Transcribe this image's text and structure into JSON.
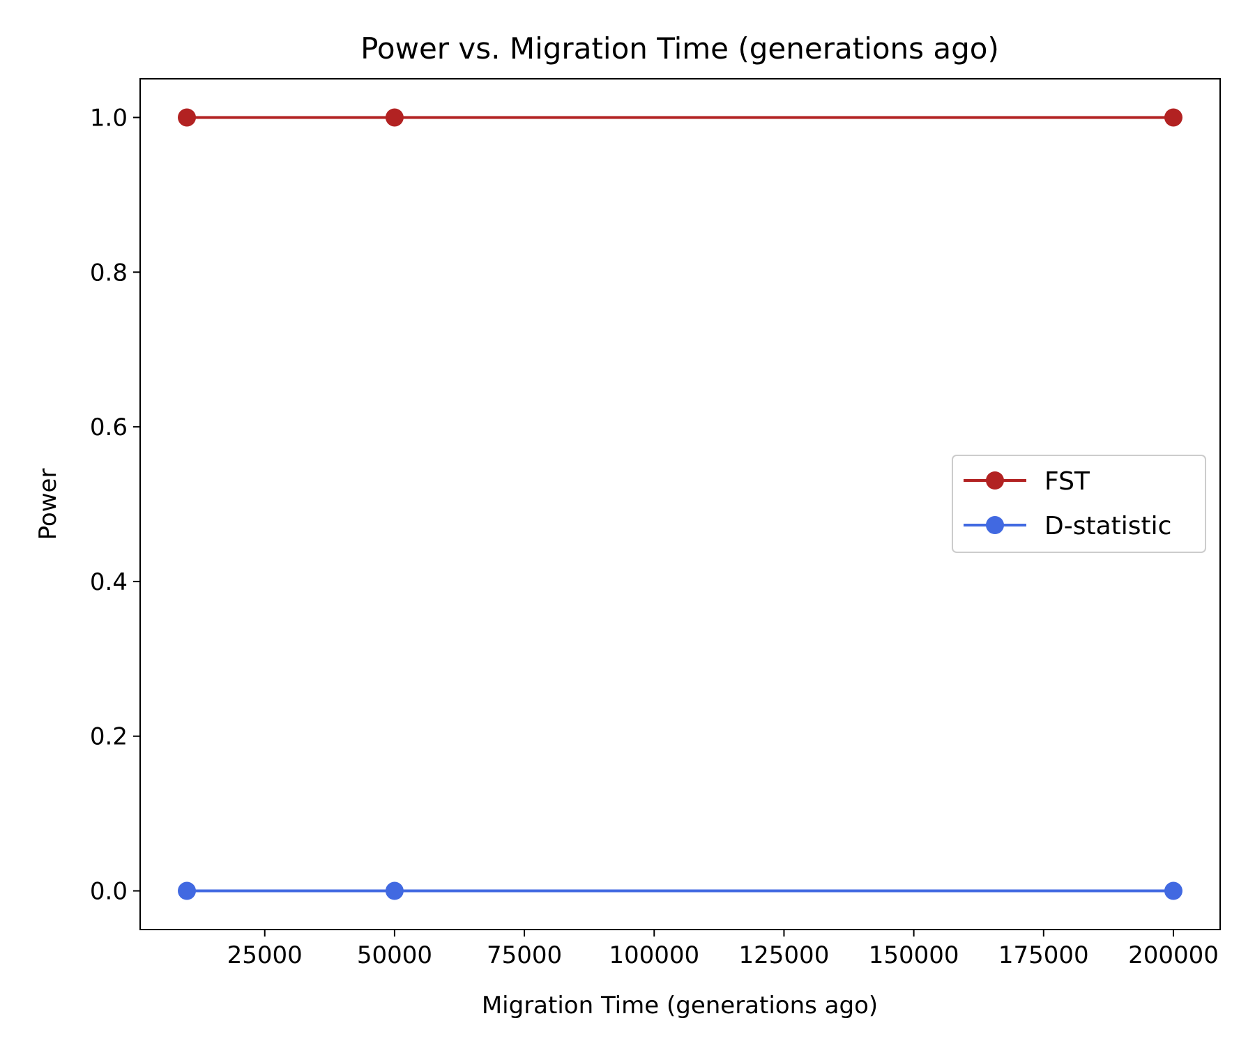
{
  "chart_data": {
    "type": "line",
    "title": "Power vs. Migration Time (generations ago)",
    "xlabel": "Migration Time (generations ago)",
    "ylabel": "Power",
    "xlim": [
      1000,
      209000
    ],
    "ylim": [
      -0.05,
      1.05
    ],
    "xticks": [
      25000,
      50000,
      75000,
      100000,
      125000,
      150000,
      175000,
      200000
    ],
    "yticks": [
      0.0,
      0.2,
      0.4,
      0.6,
      0.8,
      1.0
    ],
    "xtick_labels": [
      "25000",
      "50000",
      "75000",
      "100000",
      "125000",
      "150000",
      "175000",
      "200000"
    ],
    "ytick_labels": [
      "0.0",
      "0.2",
      "0.4",
      "0.6",
      "0.8",
      "1.0"
    ],
    "x": [
      10000,
      50000,
      200000
    ],
    "series": [
      {
        "name": "FST",
        "values": [
          1.0,
          1.0,
          1.0
        ],
        "color": "#b22222"
      },
      {
        "name": "D-statistic",
        "values": [
          0.0,
          0.0,
          0.0
        ],
        "color": "#4169e1"
      }
    ],
    "grid": false,
    "legend_position": "center-right"
  }
}
